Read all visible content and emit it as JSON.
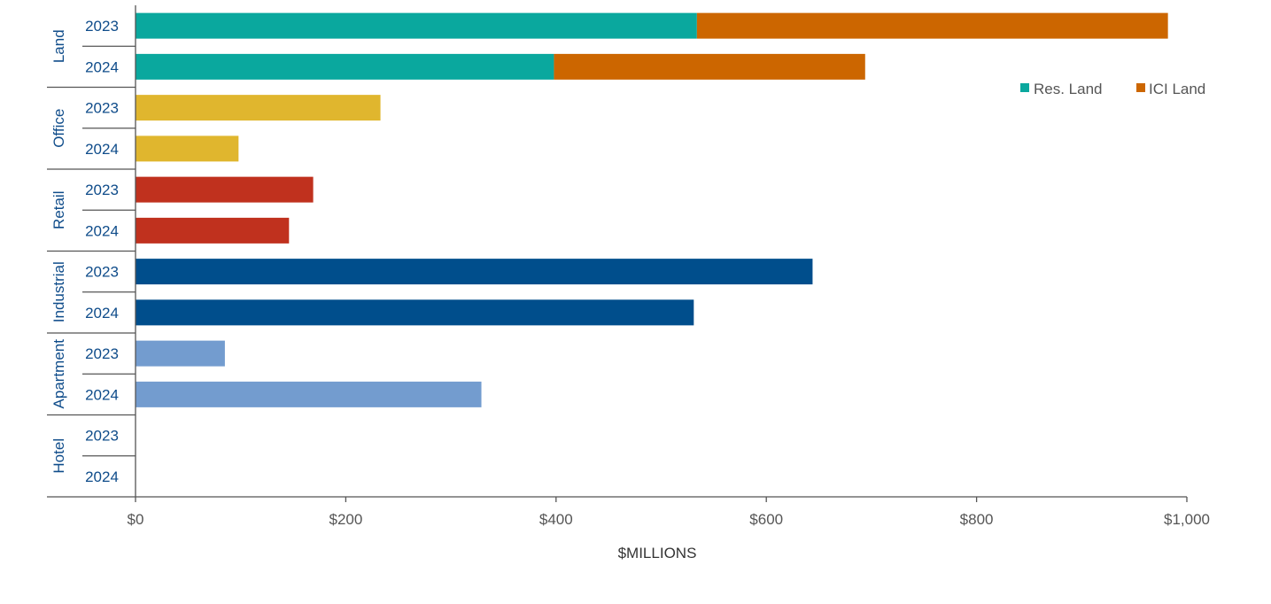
{
  "chart_data": {
    "type": "bar",
    "orientation": "horizontal",
    "stacked": true,
    "title": "",
    "xlabel": "$MILLIONS",
    "ylabel": "",
    "xlim": [
      0,
      1000
    ],
    "xticks": [
      0,
      200,
      400,
      600,
      800,
      1000
    ],
    "xtick_labels": [
      "$0",
      "$200",
      "$400",
      "$600",
      "$800",
      "$1,000"
    ],
    "grid": false,
    "legend_position": "top-right",
    "legend": [
      {
        "name": "Res. Land",
        "color": "#0aa89e"
      },
      {
        "name": "ICI Land",
        "color": "#cc6600"
      }
    ],
    "groups": [
      {
        "name": "Land",
        "rows": [
          {
            "year": "2023",
            "segments": [
              {
                "series": "Res. Land",
                "value": 534,
                "color": "#0aa89e"
              },
              {
                "series": "ICI Land",
                "value": 448,
                "color": "#cc6600"
              }
            ]
          },
          {
            "year": "2024",
            "segments": [
              {
                "series": "Res. Land",
                "value": 398,
                "color": "#0aa89e"
              },
              {
                "series": "ICI Land",
                "value": 296,
                "color": "#cc6600"
              }
            ]
          }
        ]
      },
      {
        "name": "Office",
        "rows": [
          {
            "year": "2023",
            "segments": [
              {
                "series": "Office",
                "value": 233,
                "color": "#e0b62e"
              }
            ]
          },
          {
            "year": "2024",
            "segments": [
              {
                "series": "Office",
                "value": 98,
                "color": "#e0b62e"
              }
            ]
          }
        ]
      },
      {
        "name": "Retail",
        "rows": [
          {
            "year": "2023",
            "segments": [
              {
                "series": "Retail",
                "value": 169,
                "color": "#c0311e"
              }
            ]
          },
          {
            "year": "2024",
            "segments": [
              {
                "series": "Retail",
                "value": 146,
                "color": "#c0311e"
              }
            ]
          }
        ]
      },
      {
        "name": "Industrial",
        "rows": [
          {
            "year": "2023",
            "segments": [
              {
                "series": "Industrial",
                "value": 644,
                "color": "#004e8c"
              }
            ]
          },
          {
            "year": "2024",
            "segments": [
              {
                "series": "Industrial",
                "value": 531,
                "color": "#004e8c"
              }
            ]
          }
        ]
      },
      {
        "name": "Apartment",
        "rows": [
          {
            "year": "2023",
            "segments": [
              {
                "series": "Apartment",
                "value": 85,
                "color": "#739ccf"
              }
            ]
          },
          {
            "year": "2024",
            "segments": [
              {
                "series": "Apartment",
                "value": 329,
                "color": "#739ccf"
              }
            ]
          }
        ]
      },
      {
        "name": "Hotel",
        "rows": [
          {
            "year": "2023",
            "segments": []
          },
          {
            "year": "2024",
            "segments": []
          }
        ]
      }
    ]
  }
}
